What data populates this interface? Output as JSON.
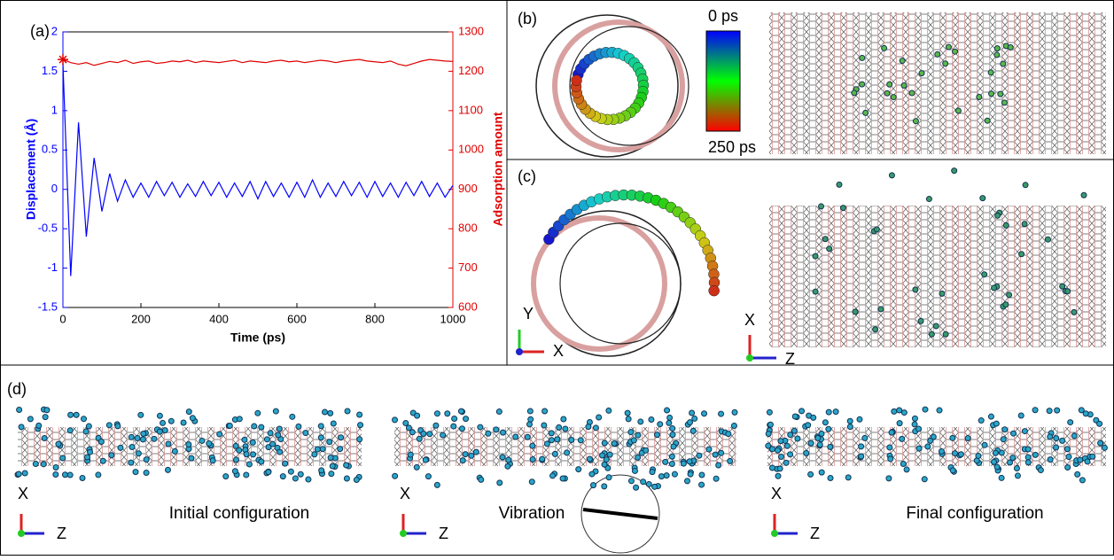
{
  "chart_data": {
    "type": "line",
    "panel_label": "(a)",
    "x_label": "Time (ps)",
    "y_label": "Displacement (Å)",
    "y2_label": "Adsorption amount",
    "x": [
      0,
      20,
      40,
      60,
      80,
      100,
      120,
      140,
      160,
      180,
      200,
      220,
      240,
      260,
      280,
      300,
      320,
      340,
      360,
      380,
      400,
      420,
      440,
      460,
      480,
      500,
      520,
      540,
      560,
      580,
      600,
      620,
      640,
      660,
      680,
      700,
      720,
      740,
      760,
      780,
      800,
      820,
      840,
      860,
      880,
      900,
      920,
      940,
      960,
      980,
      1000
    ],
    "series": [
      {
        "name": "Displacement (Å)",
        "color": "#0000ff",
        "values": [
          1.6,
          -1.1,
          0.85,
          -0.6,
          0.4,
          -0.28,
          0.2,
          -0.15,
          0.12,
          -0.1,
          0.08,
          -0.1,
          0.1,
          -0.08,
          0.09,
          -0.1,
          0.07,
          -0.09,
          0.1,
          -0.08,
          0.09,
          -0.1,
          0.08,
          -0.09,
          0.1,
          -0.12,
          0.1,
          -0.09,
          0.08,
          -0.1,
          0.09,
          -0.1,
          0.12,
          -0.1,
          0.08,
          -0.09,
          0.1,
          -0.08,
          0.09,
          -0.1,
          0.1,
          -0.09,
          0.08,
          -0.1,
          0.09,
          -0.08,
          0.1,
          -0.09,
          0.08,
          -0.1,
          0.05
        ]
      },
      {
        "name": "Adsorption amount",
        "color": "#e00000",
        "axis": "y2",
        "values": [
          1230,
          1222,
          1218,
          1222,
          1215,
          1220,
          1225,
          1222,
          1228,
          1220,
          1224,
          1226,
          1220,
          1222,
          1226,
          1224,
          1228,
          1222,
          1226,
          1224,
          1222,
          1225,
          1228,
          1222,
          1226,
          1224,
          1222,
          1226,
          1228,
          1224,
          1226,
          1222,
          1225,
          1228,
          1226,
          1222,
          1226,
          1228,
          1230,
          1226,
          1224,
          1222,
          1226,
          1218,
          1214,
          1220,
          1226,
          1230,
          1228,
          1226,
          1225
        ]
      }
    ],
    "xlim": [
      0,
      1000
    ],
    "xticks": [
      0,
      200,
      400,
      600,
      800,
      1000
    ],
    "ylim": [
      -1.5,
      2
    ],
    "yticks": [
      -1.5,
      -1,
      -0.5,
      0,
      0.5,
      1,
      1.5,
      2
    ],
    "y2lim": [
      600,
      1300
    ],
    "y2ticks": [
      600,
      700,
      800,
      900,
      1000,
      1100,
      1200,
      1300
    ]
  },
  "panels": {
    "b": {
      "label": "(b)",
      "colorbar_top": "0 ps",
      "colorbar_bottom": "250 ps"
    },
    "c": {
      "label": "(c)",
      "axes_left": [
        "Y",
        "X"
      ],
      "axes_right": [
        "X",
        "Z"
      ]
    },
    "d": {
      "label": "(d)",
      "axes": [
        [
          "X",
          "Z"
        ],
        [
          "X",
          "Z"
        ],
        [
          "X",
          "Z"
        ]
      ],
      "captions": [
        "Initial configuration",
        "Vibration",
        "Final configuration"
      ]
    }
  }
}
